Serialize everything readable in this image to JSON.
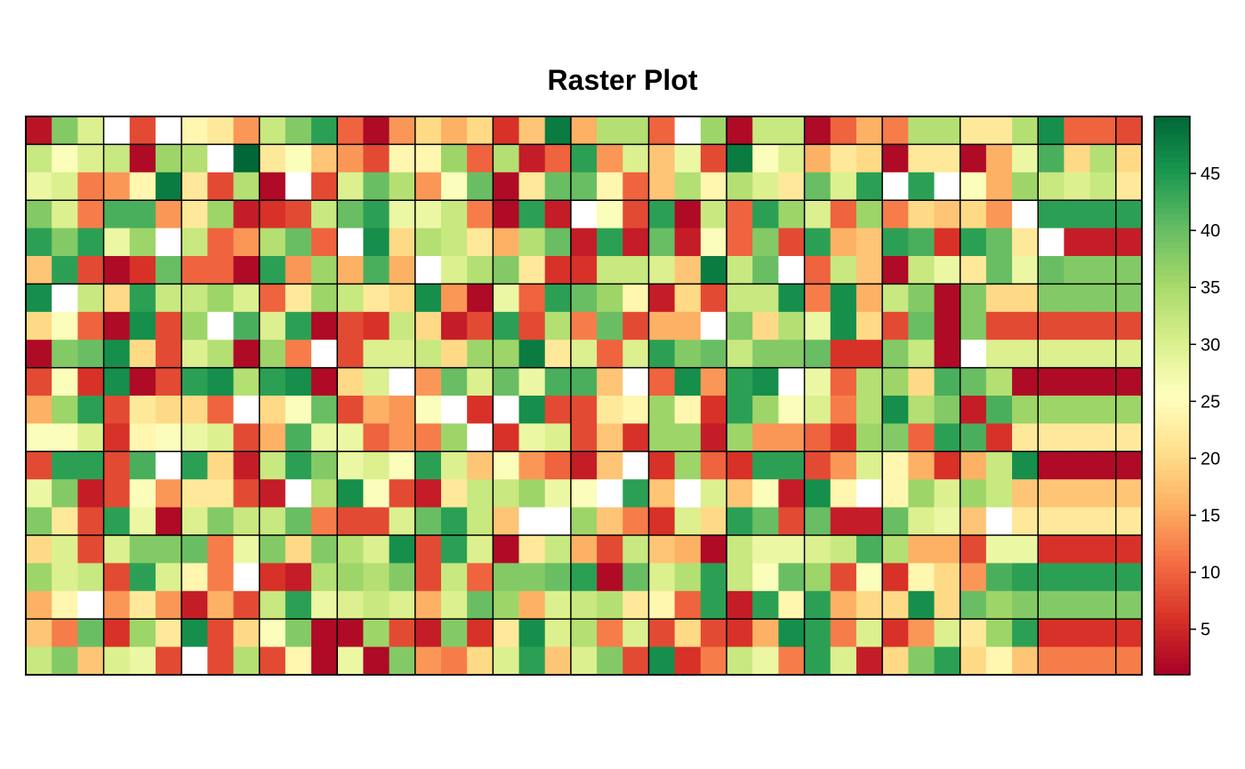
{
  "chart_data": {
    "type": "heatmap",
    "title": "Raster Plot",
    "nrows": 20,
    "ncols": 43,
    "value_range": [
      1,
      50
    ],
    "colorbar": {
      "ticks": [
        5,
        10,
        15,
        20,
        25,
        30,
        35,
        40,
        45
      ],
      "labels": [
        "5",
        "10",
        "15",
        "20",
        "25",
        "30",
        "35",
        "40",
        "45"
      ],
      "palette": "RdYlGn",
      "placement": "right"
    },
    "grid_lines": {
      "vertical_columns": [
        3,
        6,
        9,
        12,
        15,
        18,
        21,
        24,
        27,
        30,
        33,
        36,
        39,
        42
      ],
      "horizontal_rows": [
        1,
        3,
        6,
        9,
        12,
        15,
        18
      ],
      "color": "#000000"
    },
    "missing_color": "#ffffff",
    "rows": [
      [
        3,
        38,
        30,
        null,
        8,
        null,
        24,
        22,
        14,
        32,
        38,
        44,
        10,
        2,
        14,
        20,
        16,
        20,
        6,
        18,
        48,
        16,
        34,
        34,
        10,
        null,
        36,
        2,
        32,
        32,
        2,
        10,
        16,
        12,
        34,
        34,
        22,
        22,
        34,
        46,
        10,
        10,
        8
      ],
      [
        32,
        26,
        30,
        32,
        2,
        36,
        34,
        null,
        50,
        22,
        26,
        18,
        14,
        8,
        24,
        24,
        36,
        10,
        34,
        4,
        10,
        44,
        14,
        30,
        18,
        28,
        8,
        48,
        26,
        30,
        16,
        22,
        20,
        2,
        22,
        22,
        2,
        16,
        28,
        42,
        20,
        34,
        20
      ],
      [
        28,
        30,
        12,
        14,
        24,
        48,
        22,
        8,
        34,
        2,
        null,
        8,
        30,
        40,
        34,
        14,
        26,
        40,
        2,
        22,
        40,
        40,
        24,
        10,
        18,
        34,
        24,
        34,
        30,
        22,
        40,
        30,
        44,
        null,
        44,
        null,
        26,
        16,
        36,
        32,
        30,
        32,
        22
      ],
      [
        38,
        30,
        12,
        42,
        42,
        14,
        22,
        36,
        4,
        6,
        8,
        32,
        40,
        44,
        28,
        28,
        32,
        12,
        2,
        44,
        4,
        null,
        26,
        8,
        44,
        2,
        32,
        10,
        44,
        36,
        30,
        10,
        36,
        12,
        20,
        18,
        20,
        14,
        null,
        44,
        44,
        44,
        44
      ],
      [
        44,
        38,
        44,
        28,
        36,
        null,
        32,
        10,
        14,
        34,
        40,
        10,
        null,
        46,
        20,
        34,
        32,
        22,
        16,
        34,
        40,
        4,
        44,
        4,
        40,
        4,
        26,
        10,
        38,
        8,
        44,
        16,
        18,
        44,
        42,
        6,
        44,
        40,
        22,
        null,
        4,
        4,
        4
      ],
      [
        18,
        44,
        8,
        2,
        6,
        40,
        10,
        10,
        2,
        44,
        14,
        36,
        16,
        42,
        16,
        null,
        30,
        34,
        38,
        22,
        6,
        6,
        32,
        32,
        30,
        18,
        48,
        32,
        40,
        null,
        10,
        32,
        18,
        2,
        32,
        28,
        22,
        40,
        28,
        40,
        38,
        38,
        38
      ],
      [
        46,
        null,
        32,
        20,
        44,
        32,
        32,
        36,
        30,
        10,
        22,
        36,
        32,
        22,
        20,
        46,
        14,
        2,
        28,
        10,
        44,
        40,
        36,
        24,
        4,
        20,
        8,
        32,
        32,
        46,
        12,
        46,
        16,
        32,
        38,
        2,
        38,
        20,
        20,
        38,
        38,
        38,
        38
      ],
      [
        20,
        26,
        10,
        2,
        46,
        8,
        36,
        null,
        42,
        30,
        44,
        2,
        8,
        6,
        32,
        20,
        4,
        8,
        44,
        8,
        34,
        12,
        40,
        8,
        16,
        16,
        null,
        38,
        20,
        34,
        28,
        46,
        20,
        8,
        40,
        2,
        38,
        8,
        8,
        8,
        8,
        8,
        8
      ],
      [
        2,
        38,
        40,
        46,
        20,
        8,
        30,
        34,
        2,
        36,
        12,
        null,
        8,
        30,
        30,
        32,
        20,
        36,
        36,
        48,
        22,
        30,
        10,
        30,
        44,
        38,
        40,
        32,
        38,
        38,
        40,
        6,
        6,
        38,
        32,
        2,
        null,
        30,
        30,
        30,
        30,
        30,
        30
      ],
      [
        8,
        26,
        6,
        46,
        2,
        8,
        44,
        46,
        34,
        44,
        46,
        2,
        20,
        30,
        null,
        14,
        40,
        30,
        40,
        28,
        42,
        42,
        18,
        null,
        10,
        46,
        14,
        44,
        46,
        null,
        28,
        10,
        34,
        36,
        20,
        42,
        40,
        34,
        2,
        2,
        2,
        2,
        2
      ],
      [
        16,
        36,
        44,
        8,
        22,
        20,
        20,
        10,
        null,
        20,
        26,
        40,
        8,
        16,
        14,
        26,
        null,
        6,
        null,
        46,
        8,
        8,
        22,
        24,
        36,
        24,
        6,
        44,
        36,
        26,
        30,
        12,
        34,
        46,
        34,
        38,
        4,
        42,
        36,
        36,
        36,
        36,
        36
      ],
      [
        26,
        26,
        30,
        6,
        24,
        26,
        28,
        30,
        8,
        16,
        42,
        28,
        28,
        10,
        14,
        12,
        36,
        null,
        6,
        28,
        30,
        8,
        18,
        6,
        36,
        36,
        4,
        36,
        14,
        14,
        10,
        6,
        36,
        38,
        10,
        44,
        42,
        6,
        22,
        22,
        22,
        22,
        22
      ],
      [
        8,
        44,
        44,
        8,
        42,
        null,
        44,
        20,
        4,
        32,
        44,
        38,
        28,
        30,
        26,
        44,
        30,
        18,
        26,
        14,
        10,
        4,
        18,
        null,
        6,
        36,
        10,
        6,
        44,
        44,
        8,
        14,
        30,
        24,
        16,
        6,
        16,
        32,
        46,
        2,
        2,
        2,
        2
      ],
      [
        28,
        38,
        4,
        8,
        26,
        14,
        22,
        22,
        8,
        4,
        null,
        34,
        46,
        26,
        8,
        4,
        22,
        32,
        32,
        36,
        28,
        26,
        null,
        44,
        18,
        null,
        30,
        18,
        26,
        4,
        46,
        24,
        null,
        24,
        36,
        30,
        36,
        32,
        18,
        18,
        18,
        18,
        18
      ],
      [
        38,
        22,
        8,
        44,
        28,
        2,
        30,
        38,
        32,
        32,
        40,
        12,
        8,
        8,
        30,
        40,
        44,
        32,
        18,
        null,
        null,
        36,
        18,
        12,
        6,
        30,
        20,
        44,
        40,
        8,
        40,
        4,
        4,
        40,
        30,
        28,
        18,
        null,
        22,
        22,
        22,
        22,
        22
      ],
      [
        20,
        30,
        8,
        30,
        38,
        38,
        40,
        12,
        28,
        38,
        20,
        38,
        34,
        30,
        46,
        8,
        44,
        30,
        2,
        22,
        32,
        16,
        8,
        32,
        18,
        16,
        2,
        32,
        28,
        28,
        30,
        32,
        42,
        34,
        16,
        16,
        8,
        28,
        28,
        6,
        6,
        6,
        6
      ],
      [
        36,
        30,
        32,
        8,
        44,
        30,
        24,
        12,
        null,
        6,
        4,
        34,
        36,
        34,
        38,
        8,
        32,
        10,
        38,
        38,
        40,
        44,
        2,
        40,
        30,
        34,
        44,
        32,
        26,
        40,
        36,
        8,
        26,
        6,
        24,
        20,
        14,
        42,
        44,
        44,
        44,
        44,
        44
      ],
      [
        16,
        24,
        null,
        14,
        22,
        14,
        4,
        16,
        8,
        32,
        44,
        28,
        30,
        32,
        30,
        16,
        30,
        40,
        36,
        16,
        30,
        32,
        34,
        22,
        24,
        10,
        44,
        4,
        44,
        24,
        44,
        16,
        20,
        20,
        46,
        20,
        40,
        36,
        38,
        38,
        38,
        38,
        38
      ],
      [
        18,
        12,
        40,
        6,
        36,
        22,
        46,
        8,
        20,
        26,
        38,
        2,
        2,
        36,
        8,
        4,
        38,
        6,
        22,
        46,
        30,
        34,
        12,
        30,
        8,
        20,
        8,
        6,
        16,
        46,
        44,
        12,
        30,
        6,
        14,
        30,
        22,
        36,
        44,
        6,
        6,
        6,
        6
      ],
      [
        32,
        38,
        18,
        30,
        28,
        8,
        null,
        8,
        34,
        8,
        24,
        2,
        28,
        2,
        38,
        14,
        12,
        20,
        30,
        44,
        18,
        30,
        38,
        8,
        46,
        6,
        12,
        32,
        28,
        12,
        44,
        30,
        4,
        20,
        38,
        44,
        20,
        24,
        18,
        12,
        12,
        12,
        12
      ]
    ]
  }
}
